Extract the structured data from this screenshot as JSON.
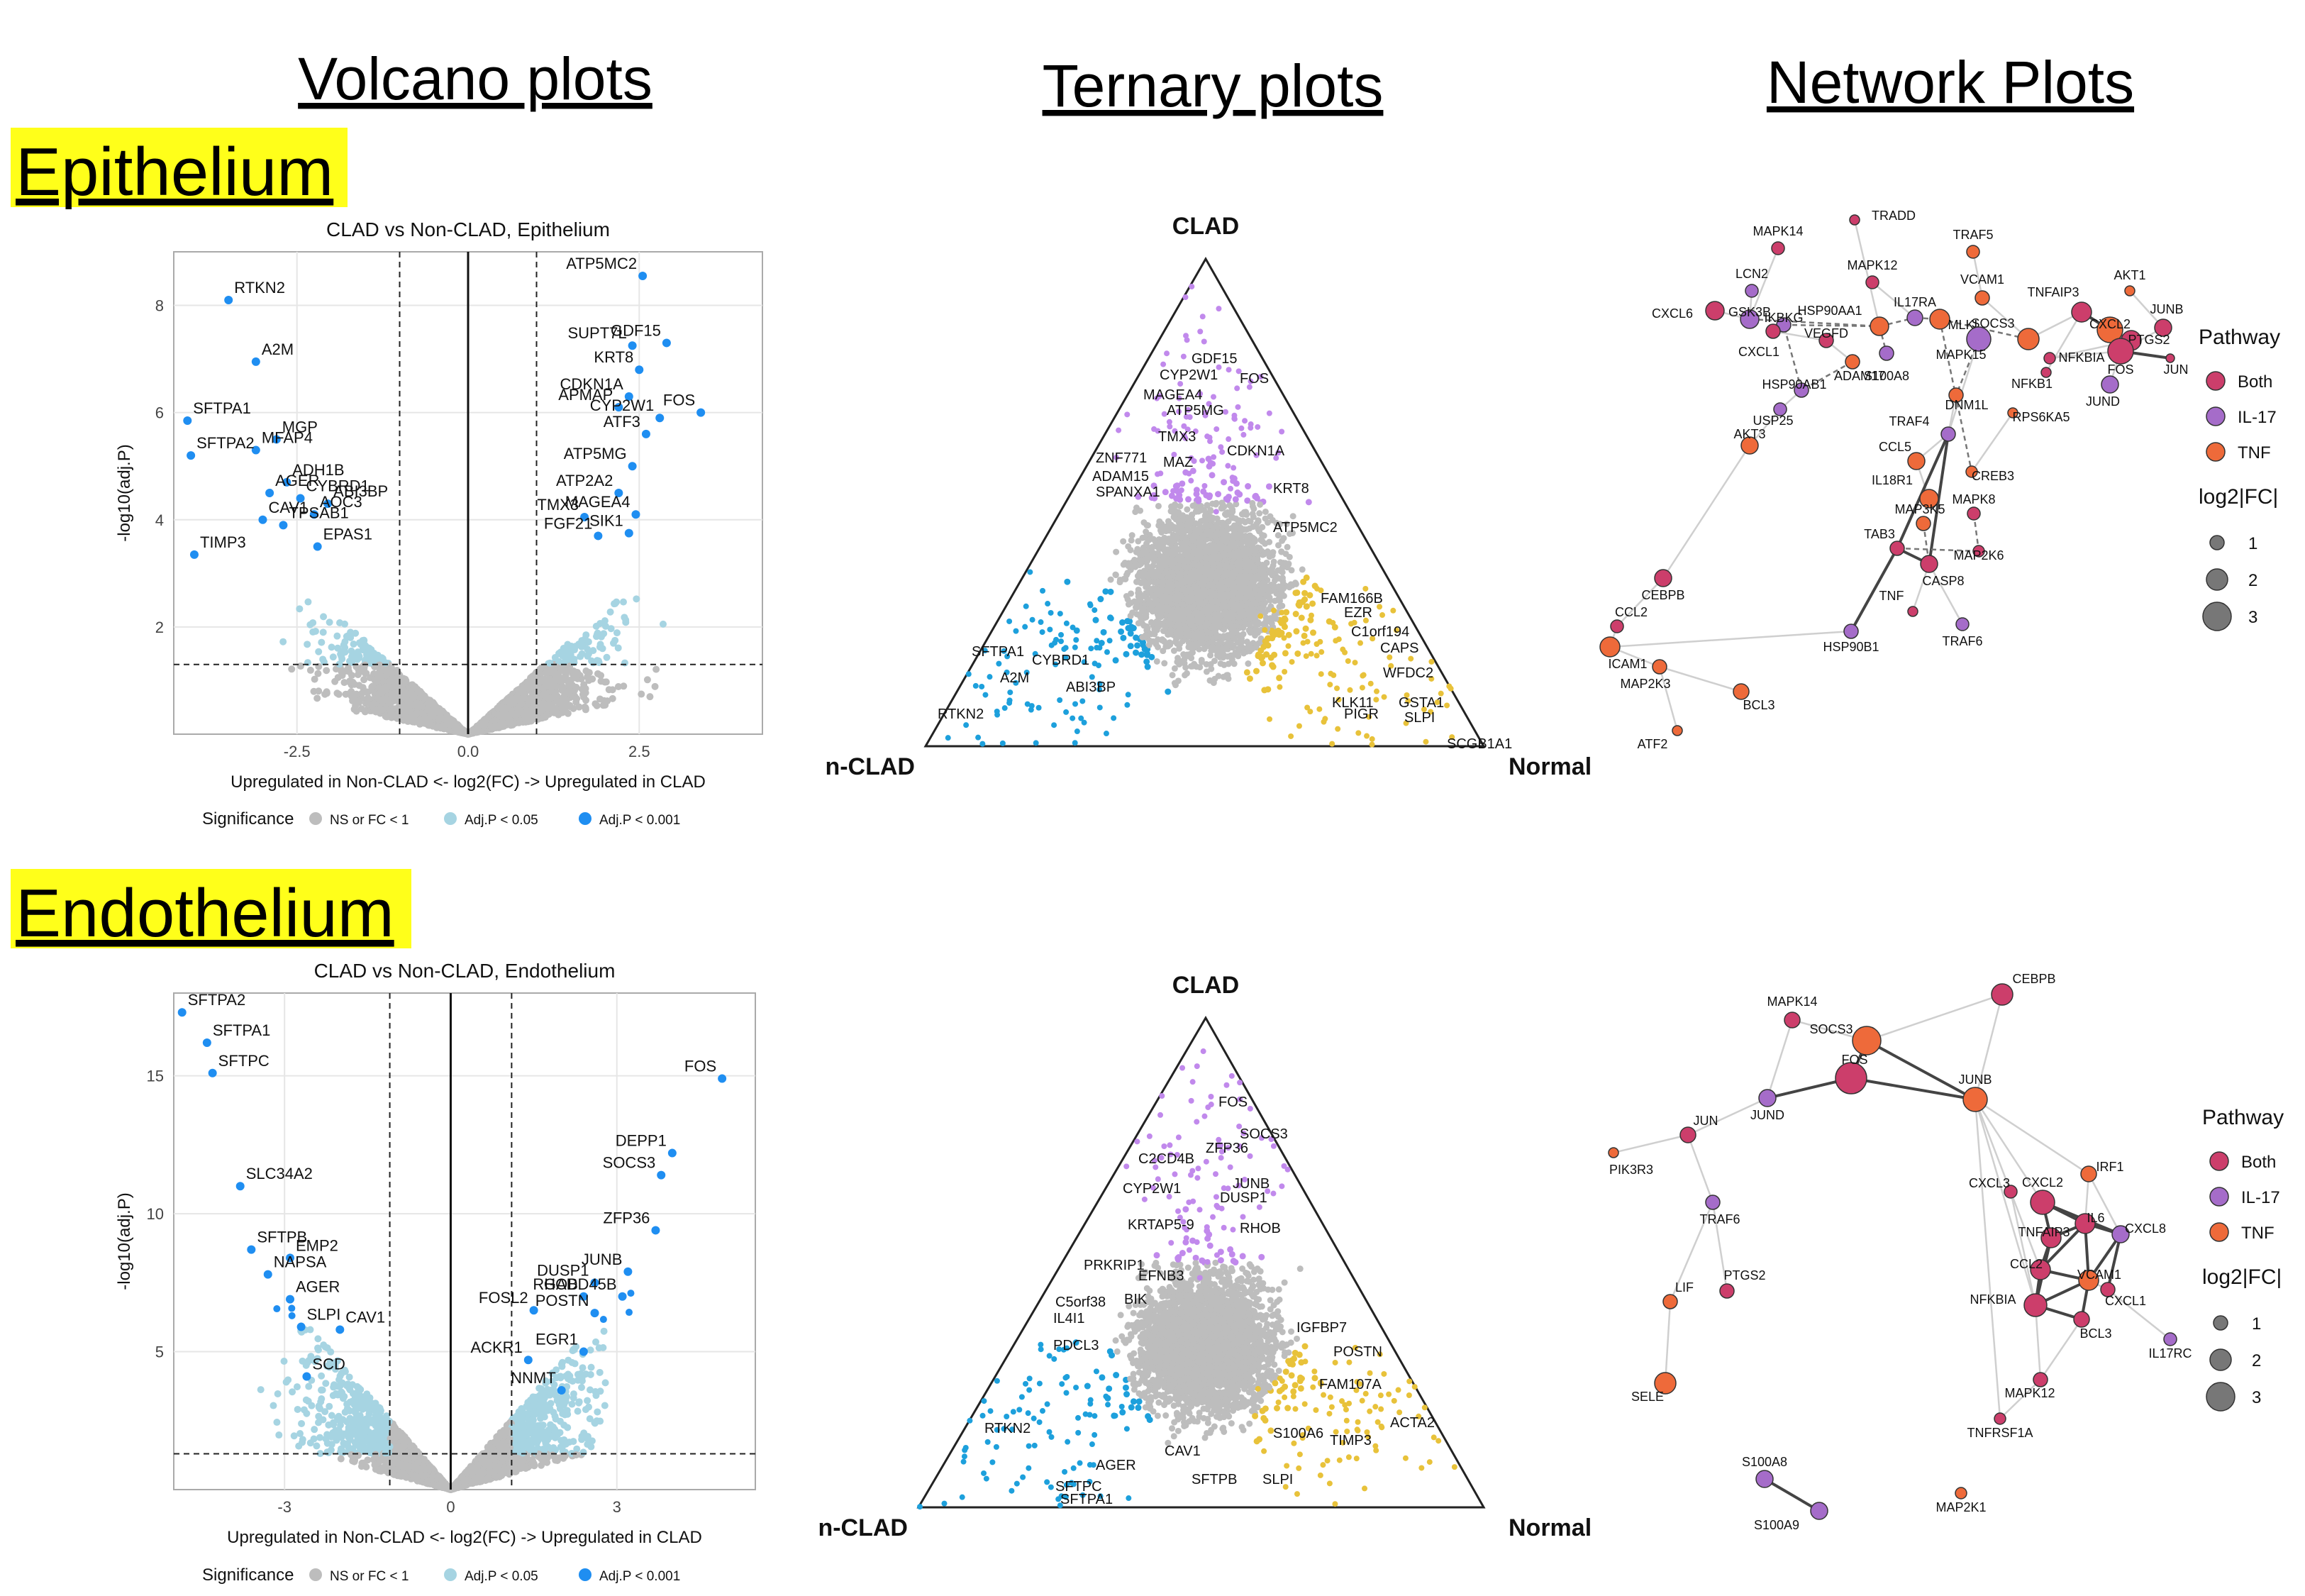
{
  "headers": {
    "volcano": "Volcano plots",
    "ternary": "Ternary plots",
    "network": "Network Plots"
  },
  "sections": {
    "epithelium": "Epithelium",
    "endothelium": "Endothelium"
  },
  "colors": {
    "ns": "#bdbdbd",
    "sig05": "#a6d4e2",
    "sig001": "#1f8ef1",
    "ternary_purple": "#c189ec",
    "ternary_yellow": "#e8c23a",
    "ternary_blue": "#1da0dc",
    "both": "#cc3e6b",
    "il17": "#a56cc9",
    "tnf": "#ee6a3a",
    "highlight": "#ffff1a"
  },
  "chart_data": [
    {
      "id": "volcano_epi",
      "type": "scatter",
      "title": "CLAD vs Non-CLAD, Epithelium",
      "xlabel": "Upregulated in Non-CLAD <- log2(FC) -> Upregulated in CLAD",
      "ylabel": "-log10(adj.P)",
      "xlim": [
        -4.3,
        4.3
      ],
      "ylim": [
        0,
        9.0
      ],
      "xticks": [
        -2.5,
        0.0,
        2.5
      ],
      "xtick_labels": [
        "-2.5",
        "0.0",
        "2.5"
      ],
      "yticks": [
        2,
        4,
        6,
        8
      ],
      "fc_threshold": 1,
      "p_threshold": 1.3,
      "legend_title": "Significance",
      "legend": [
        "NS or FC < 1",
        "Adj.P < 0.05",
        "Adj.P < 0.001"
      ],
      "labels": [
        {
          "g": "ATP5MC2",
          "x": 2.55,
          "y": 8.55
        },
        {
          "g": "RTKN2",
          "x": -3.5,
          "y": 8.1
        },
        {
          "g": "SUPT7L",
          "x": 2.4,
          "y": 7.25
        },
        {
          "g": "GDF15",
          "x": 2.9,
          "y": 7.3
        },
        {
          "g": "A2M",
          "x": -3.1,
          "y": 6.95
        },
        {
          "g": "KRT8",
          "x": 2.5,
          "y": 6.8
        },
        {
          "g": "CDKN1A",
          "x": 2.35,
          "y": 6.3
        },
        {
          "g": "FOS",
          "x": 3.4,
          "y": 6.0
        },
        {
          "g": "APMAP",
          "x": 2.2,
          "y": 6.1
        },
        {
          "g": "CYP2W1",
          "x": 2.8,
          "y": 5.9
        },
        {
          "g": "SFTPA1",
          "x": -4.1,
          "y": 5.85
        },
        {
          "g": "MGP",
          "x": -2.8,
          "y": 5.5
        },
        {
          "g": "ATF3",
          "x": 2.6,
          "y": 5.6
        },
        {
          "g": "MFAP4",
          "x": -3.1,
          "y": 5.3
        },
        {
          "g": "SFTPA2",
          "x": -4.05,
          "y": 5.2
        },
        {
          "g": "ATP5MG",
          "x": 2.4,
          "y": 5.0
        },
        {
          "g": "ADH1B",
          "x": -2.65,
          "y": 4.7
        },
        {
          "g": "ATP2A2",
          "x": 2.2,
          "y": 4.5
        },
        {
          "g": "AGER",
          "x": -2.9,
          "y": 4.5
        },
        {
          "g": "CYBRD1",
          "x": -2.45,
          "y": 4.4
        },
        {
          "g": "ABI3BP",
          "x": -2.05,
          "y": 4.3
        },
        {
          "g": "TMX3",
          "x": 1.7,
          "y": 4.05
        },
        {
          "g": "MAGEA4",
          "x": 2.45,
          "y": 4.1
        },
        {
          "g": "CAV1",
          "x": -3.0,
          "y": 4.0
        },
        {
          "g": "AOC3",
          "x": -2.25,
          "y": 4.1
        },
        {
          "g": "TPSAB1",
          "x": -2.7,
          "y": 3.9
        },
        {
          "g": "FGF21",
          "x": 1.9,
          "y": 3.7
        },
        {
          "g": "SIK1",
          "x": 2.35,
          "y": 3.75
        },
        {
          "g": "TIMP3",
          "x": -4.0,
          "y": 3.35
        },
        {
          "g": "EPAS1",
          "x": -2.2,
          "y": 3.5
        }
      ]
    },
    {
      "id": "volcano_endo",
      "type": "scatter",
      "title": "CLAD vs Non-CLAD, Endothelium",
      "xlabel": "Upregulated in Non-CLAD <- log2(FC) -> Upregulated in CLAD",
      "ylabel": "-log10(adj.P)",
      "xlim": [
        -5.0,
        5.5
      ],
      "ylim": [
        0,
        18.0
      ],
      "xticks": [
        -3,
        0,
        3
      ],
      "xtick_labels": [
        "-3",
        "0",
        "3"
      ],
      "yticks": [
        5,
        10,
        15
      ],
      "fc_threshold": 1.1,
      "p_threshold": 1.3,
      "legend_title": "Significance",
      "legend": [
        "NS or FC < 1",
        "Adj.P < 0.05",
        "Adj.P < 0.001"
      ],
      "labels": [
        {
          "g": "SFTPA2",
          "x": -4.85,
          "y": 17.3
        },
        {
          "g": "SFTPA1",
          "x": -4.4,
          "y": 16.2
        },
        {
          "g": "SFTPC",
          "x": -4.3,
          "y": 15.1
        },
        {
          "g": "FOS",
          "x": 4.9,
          "y": 14.9
        },
        {
          "g": "DEPP1",
          "x": 4.0,
          "y": 12.2
        },
        {
          "g": "SOCS3",
          "x": 3.8,
          "y": 11.4
        },
        {
          "g": "SLC34A2",
          "x": -3.8,
          "y": 11.0
        },
        {
          "g": "ZFP36",
          "x": 3.7,
          "y": 9.4
        },
        {
          "g": "SFTPB",
          "x": -3.6,
          "y": 8.7
        },
        {
          "g": "JUNB",
          "x": 3.2,
          "y": 7.9
        },
        {
          "g": "EMP2",
          "x": -2.9,
          "y": 8.4
        },
        {
          "g": "DUSP1",
          "x": 2.6,
          "y": 7.5
        },
        {
          "g": "NAPSA",
          "x": -3.3,
          "y": 7.8
        },
        {
          "g": "RHOB",
          "x": 2.4,
          "y": 7.0
        },
        {
          "g": "GADD45B",
          "x": 3.1,
          "y": 7.0
        },
        {
          "g": "AGER",
          "x": -2.9,
          "y": 6.9
        },
        {
          "g": "FOSL2",
          "x": 1.5,
          "y": 6.5
        },
        {
          "g": "POSTN",
          "x": 2.6,
          "y": 6.4
        },
        {
          "g": "SLPI",
          "x": -2.7,
          "y": 5.9
        },
        {
          "g": "CAV1",
          "x": -2.0,
          "y": 5.8
        },
        {
          "g": "EGR1",
          "x": 2.4,
          "y": 5.0
        },
        {
          "g": "ACKR1",
          "x": 1.4,
          "y": 4.7
        },
        {
          "g": "SCD",
          "x": -2.6,
          "y": 4.1
        },
        {
          "g": "NNMT",
          "x": 2.0,
          "y": 3.6
        }
      ]
    },
    {
      "id": "ternary_epi",
      "type": "scatter",
      "title": "",
      "corners": [
        "CLAD",
        "n-CLAD",
        "Normal"
      ],
      "labels": [
        "GDF15",
        "CYP2W1",
        "FOS",
        "MAGEA4",
        "ATP5MG",
        "TMX3",
        "CDKN1A",
        "ZNF771",
        "MAZ",
        "ADAM15",
        "SPANXA1",
        "KRT8",
        "ATP5MC2",
        "FAM166B",
        "EZR",
        "C1orf194",
        "CAPS",
        "WFDC2",
        "KLK11",
        "GSTA1",
        "PIGR",
        "SLPI",
        "SCGB1A1",
        "SFTPA1",
        "CYBRD1",
        "A2M",
        "ABI3BP",
        "RTKN2"
      ]
    },
    {
      "id": "ternary_endo",
      "type": "scatter",
      "title": "",
      "corners": [
        "CLAD",
        "n-CLAD",
        "Normal"
      ],
      "labels": [
        "FOS",
        "SOCS3",
        "ZFP36",
        "C2CD4B",
        "JUNB",
        "DUSP1",
        "CYP2W1",
        "KRTAP5-9",
        "RHOB",
        "PRKRIP1",
        "EFNB3",
        "C5orf38",
        "BIK",
        "IL4I1",
        "PDCL3",
        "IGFBP7",
        "POSTN",
        "FAM107A",
        "ACTA2",
        "TIMP3",
        "S100A6",
        "SLPI",
        "SFTPB",
        "CAV1",
        "AGER",
        "RTKN2",
        "SFTPC",
        "SFTPA1"
      ]
    },
    {
      "id": "network_epi",
      "type": "table",
      "title": "",
      "legend_title": "Pathway",
      "legend": [
        "Both",
        "IL-17",
        "TNF"
      ],
      "size_title": "log2|FC|",
      "size_values": [
        1,
        2,
        3
      ],
      "nodes": [
        "TRADD",
        "MAPK14",
        "TRAF5",
        "MAPK12",
        "LCN2",
        "VCAM1",
        "AKT1",
        "TNFAIP3",
        "CXCL6",
        "GSK3B",
        "HSP90AA1",
        "IL17RA",
        "JUNB",
        "CXCL2",
        "IKBKG",
        "VEGFD",
        "MLKL",
        "SOCS3",
        "PTGS2",
        "CXCL1",
        "MAPK15",
        "NFKBIA",
        "FOS",
        "JUN",
        "ADAM17",
        "S100A8",
        "NFKB1",
        "JUND",
        "HSP90AB1",
        "DNM1L",
        "RPS6KA5",
        "USP25",
        "TRAF4",
        "AKT3",
        "CCL5",
        "CREB3",
        "IL18R1",
        "MAP3K5",
        "MAPK8",
        "TAB3",
        "MAP2K6",
        "CEBPB",
        "CASP8",
        "TNF",
        "CCL2",
        "TRAF6",
        "HSP90B1",
        "ICAM1",
        "MAP2K3",
        "BCL3",
        "ATF2"
      ]
    },
    {
      "id": "network_endo",
      "type": "table",
      "title": "",
      "legend_title": "Pathway",
      "legend": [
        "Both",
        "IL-17",
        "TNF"
      ],
      "size_title": "log2|FC|",
      "size_values": [
        1,
        2,
        3
      ],
      "nodes": [
        "CEBPB",
        "MAPK14",
        "SOCS3",
        "FOS",
        "JUNB",
        "JUN",
        "JUND",
        "PIK3R3",
        "TRAF6",
        "IRF1",
        "CXCL3",
        "CXCL2",
        "TNFAIP3",
        "IL6",
        "CXCL8",
        "CCL2",
        "VCAM1",
        "NFKBIA",
        "CXCL1",
        "BCL3",
        "IL17RC",
        "PTGS2",
        "LIF",
        "SELE",
        "MAPK12",
        "TNFRSF1A",
        "S100A8",
        "S100A9",
        "MAP2K1"
      ]
    }
  ]
}
